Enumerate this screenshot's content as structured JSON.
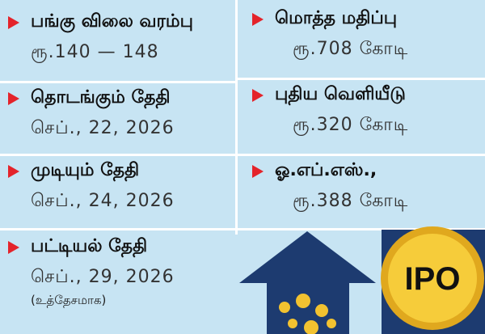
{
  "left": [
    {
      "heading": "பங்கு விலை வரம்பு",
      "value": "ரூ.140 — 148"
    },
    {
      "heading": "தொடங்கும் தேதி",
      "value": "செப்., 22, 2026"
    },
    {
      "heading": "முடியும் தேதி",
      "value": "செப்., 24, 2026"
    },
    {
      "heading": "பட்டியல் தேதி",
      "value": "செப்., 29, 2026",
      "note": "(உத்தேசமாக)"
    }
  ],
  "right": [
    {
      "heading": "மொத்த மதிப்பு",
      "value": "ரூ.708 கோடி"
    },
    {
      "heading": "புதிய வெளியீடு",
      "value": "ரூ.320 கோடி"
    },
    {
      "heading": "ஓ.எப்.எஸ்.,",
      "value": "ரூ.388 கோடி"
    }
  ],
  "illustration": {
    "coin_label": "IPO"
  }
}
